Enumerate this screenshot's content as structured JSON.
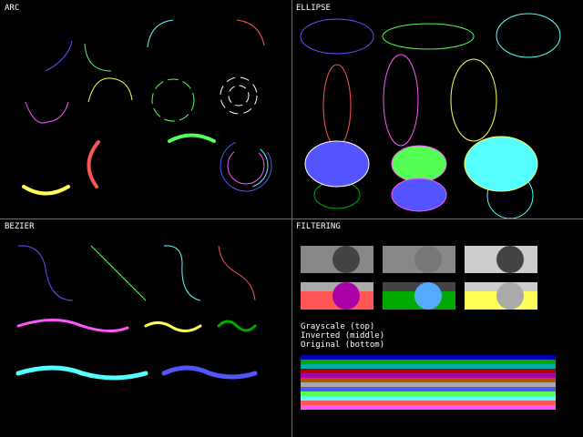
{
  "panels": {
    "arc": {
      "title": "ARC"
    },
    "ellipse": {
      "title": "ELLIPSE"
    },
    "bezier": {
      "title": "BEZIER"
    },
    "filtering": {
      "title": "FILTERING",
      "legend": [
        "Grayscale (top)",
        "Inverted (middle)",
        "Original (bottom)"
      ]
    }
  },
  "palette": {
    "background": "#000000",
    "divider": "#6f6f6f",
    "white": "#ffffff",
    "blue": "#5555ff",
    "green": "#55ff55",
    "cyan": "#55ffff",
    "red": "#ff5555",
    "magenta": "#ff55ff",
    "yellow": "#ffff55",
    "dark_green": "#00aa00",
    "gray_light": "#aaaaaa",
    "gray_mid": "#888888",
    "gray_dark": "#444444"
  },
  "stripe_colors": [
    "#0000aa",
    "#00aa00",
    "#00aaaa",
    "#aa0000",
    "#aa00aa",
    "#aa5500",
    "#aaaaaa",
    "#5555ff",
    "#55ff55",
    "#55ffff",
    "#ff5555",
    "#ff55ff"
  ]
}
